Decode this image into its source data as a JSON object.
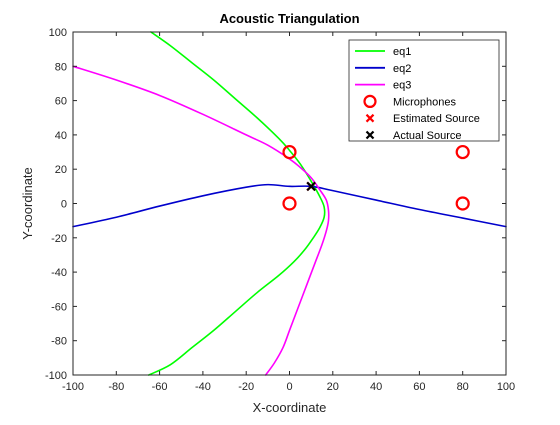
{
  "chart_data": {
    "type": "line",
    "title": "Acoustic Triangulation",
    "xlabel": "X-coordinate",
    "ylabel": "Y-coordinate",
    "xlim": [
      -100,
      100
    ],
    "ylim": [
      -100,
      100
    ],
    "x_ticks": [
      -100,
      -80,
      -60,
      -40,
      -20,
      0,
      20,
      40,
      60,
      80,
      100
    ],
    "y_ticks": [
      -100,
      -80,
      -60,
      -40,
      -20,
      0,
      20,
      40,
      60,
      80,
      100
    ],
    "grid": false,
    "box": true,
    "legend_position": "top-right",
    "series": [
      {
        "name": "eq1",
        "style": "line",
        "color": "#00ff00",
        "x": [
          -64,
          -55,
          -45,
          -35,
          -25,
          -15,
          -5,
          0,
          5,
          10,
          14,
          16,
          16,
          14,
          11,
          7,
          2,
          -5,
          -15,
          -25,
          -35,
          -45,
          -55,
          -65
        ],
        "y": [
          100,
          92,
          82,
          72,
          61,
          50,
          38,
          31,
          23,
          13,
          4,
          -2,
          -8,
          -14,
          -20,
          -27,
          -34,
          -42,
          -52,
          -63,
          -74,
          -84,
          -94,
          -100
        ]
      },
      {
        "name": "eq2",
        "style": "line",
        "color": "#0000cc",
        "x": [
          -100,
          -80,
          -60,
          -40,
          -20,
          -10,
          0,
          10,
          20,
          40,
          60,
          80,
          100
        ],
        "y": [
          -13.5,
          -8,
          -1.5,
          4.5,
          9.5,
          11,
          10,
          10,
          7.5,
          2,
          -3.5,
          -8.5,
          -13.5
        ]
      },
      {
        "name": "eq3",
        "style": "line",
        "color": "#ff00ff",
        "x": [
          -100,
          -80,
          -60,
          -40,
          -20,
          -10,
          0,
          5,
          10,
          14,
          17,
          18,
          18,
          17,
          15,
          12,
          9,
          6,
          3,
          0,
          -3,
          -7,
          -11
        ],
        "y": [
          80,
          72,
          63,
          52,
          40,
          34,
          26,
          21,
          15,
          8,
          2,
          -4,
          -10,
          -16,
          -24,
          -34,
          -44,
          -54,
          -64,
          -74,
          -84,
          -93,
          -100
        ]
      },
      {
        "name": "Microphones",
        "style": "marker-circle",
        "color": "#ff0000",
        "x": [
          0,
          0,
          80,
          80
        ],
        "y": [
          0,
          30,
          0,
          30
        ]
      },
      {
        "name": "Estimated Source",
        "style": "marker-x",
        "color": "#ff0000",
        "x": [
          10
        ],
        "y": [
          10
        ]
      },
      {
        "name": "Actual Source",
        "style": "marker-x",
        "color": "#000000",
        "x": [
          10
        ],
        "y": [
          10
        ]
      }
    ]
  }
}
